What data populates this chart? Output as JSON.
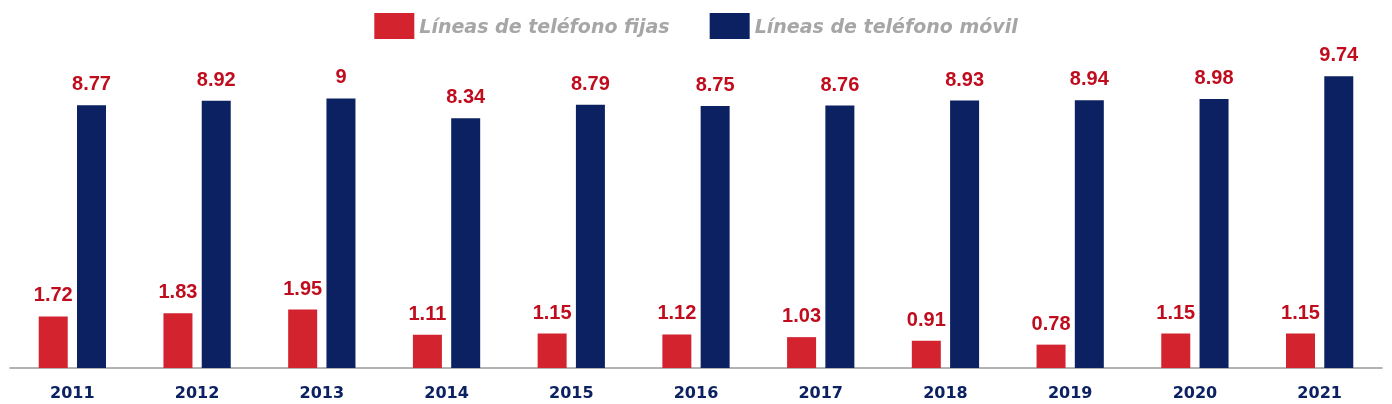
{
  "chart_data": {
    "type": "bar",
    "categories": [
      "2011",
      "2012",
      "2013",
      "2014",
      "2015",
      "2016",
      "2017",
      "2018",
      "2019",
      "2020",
      "2021"
    ],
    "series": [
      {
        "name": "Líneas de teléfono fijas",
        "color": "#d2232f",
        "values": [
          1.72,
          1.83,
          1.95,
          1.11,
          1.15,
          1.12,
          1.03,
          0.91,
          0.78,
          1.15,
          1.15
        ]
      },
      {
        "name": "Líneas de teléfono móvil",
        "color": "#0b2161",
        "values": [
          8.77,
          8.92,
          9,
          8.34,
          8.79,
          8.75,
          8.76,
          8.93,
          8.94,
          8.98,
          9.74
        ]
      }
    ],
    "data_labels": true,
    "legend": "top"
  }
}
